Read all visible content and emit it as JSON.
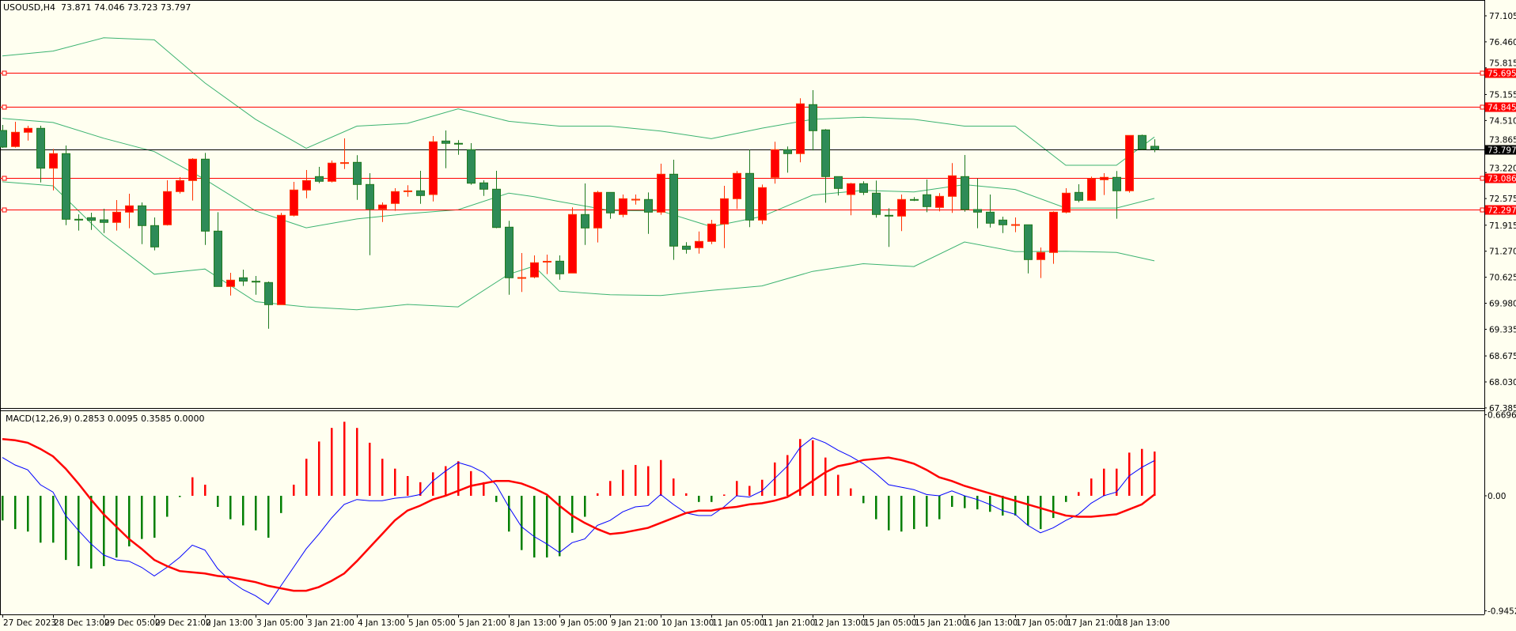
{
  "header": {
    "symbol_tf": "USOUSD,H4",
    "ohlc": "73.871 74.046 73.723 73.797"
  },
  "macd_header": {
    "name": "MACD(12,26,9)",
    "values": "0.2853 0.0095 0.3585 0.0000"
  },
  "colors": {
    "background": "#fffff0",
    "bull": "#ff0000",
    "bear": "#2e8b57",
    "band": "#3cb371",
    "level": "#ff0000",
    "macd_line": "#0000ff",
    "signal_line": "#ff0000",
    "hist_pos": "#ff0000",
    "hist_neg": "#007f00"
  },
  "price_axis": {
    "min": 67.385,
    "max": 77.105,
    "ticks": [
      "77.105",
      "76.460",
      "75.815",
      "75.155",
      "74.510",
      "73.865",
      "73.220",
      "72.575",
      "71.915",
      "71.270",
      "70.625",
      "69.980",
      "69.335",
      "68.675",
      "68.030",
      "67.385"
    ]
  },
  "levels": [
    {
      "price": 75.695,
      "label": "75.695"
    },
    {
      "price": 74.845,
      "label": "74.845"
    },
    {
      "price": 73.086,
      "label": "73.086"
    },
    {
      "price": 72.297,
      "label": "72.297"
    }
  ],
  "current_price": {
    "price": 73.797,
    "label": "73.797"
  },
  "macd_axis": {
    "ticks": [
      {
        "v": 0.6696,
        "label": "0.6696"
      },
      {
        "v": 0,
        "label": "0.00"
      },
      {
        "v": -0.9452,
        "label": "-0.9452"
      }
    ]
  },
  "time_axis": {
    "every_bars": 4,
    "labels": [
      "27 Dec 2023",
      "28 Dec 13:00",
      "29 Dec 05:00",
      "29 Dec 21:00",
      "2 Jan 13:00",
      "3 Jan 05:00",
      "3 Jan 21:00",
      "4 Jan 13:00",
      "5 Jan 05:00",
      "5 Jan 21:00",
      "8 Jan 13:00",
      "9 Jan 05:00",
      "9 Jan 21:00",
      "10 Jan 13:00",
      "11 Jan 05:00",
      "11 Jan 21:00",
      "12 Jan 13:00",
      "15 Jan 05:00",
      "15 Jan 21:00",
      "16 Jan 13:00",
      "17 Jan 05:00",
      "17 Jan 21:00",
      "18 Jan 13:00"
    ]
  },
  "chart_data": {
    "type": "candlestick",
    "timeframe": "H4",
    "ohlc": [
      [
        74.263,
        74.4,
        73.832,
        73.851
      ],
      [
        73.865,
        74.479,
        73.838,
        74.218
      ],
      [
        74.218,
        74.381,
        74.014,
        74.316
      ],
      [
        74.316,
        74.381,
        72.975,
        73.328
      ],
      [
        73.328,
        73.806,
        72.779,
        73.689
      ],
      [
        73.689,
        73.891,
        71.917,
        72.062
      ],
      [
        72.062,
        72.186,
        71.78,
        72.05
      ],
      [
        72.101,
        72.225,
        71.799,
        72.035
      ],
      [
        72.048,
        72.323,
        71.721,
        71.984
      ],
      [
        71.984,
        72.538,
        71.78,
        72.238
      ],
      [
        72.238,
        72.695,
        71.839,
        72.395
      ],
      [
        72.395,
        72.479,
        71.446,
        71.905
      ],
      [
        71.905,
        72.107,
        71.29,
        71.376
      ],
      [
        71.925,
        73.028,
        71.905,
        72.748
      ],
      [
        72.748,
        73.107,
        72.701,
        73.022
      ],
      [
        73.022,
        73.577,
        72.525,
        73.552
      ],
      [
        73.552,
        73.708,
        71.427,
        71.768
      ],
      [
        71.768,
        72.238,
        70.396,
        70.396
      ],
      [
        70.396,
        70.735,
        70.172,
        70.553
      ],
      [
        70.612,
        70.813,
        70.408,
        70.529
      ],
      [
        70.525,
        70.657,
        70.192,
        70.52
      ],
      [
        70.494,
        70.519,
        69.349,
        69.945
      ],
      [
        69.945,
        72.219,
        69.945,
        72.16
      ],
      [
        72.16,
        72.989,
        72.132,
        72.787
      ],
      [
        72.787,
        73.283,
        72.583,
        73.022
      ],
      [
        73.12,
        73.361,
        72.956,
        73.003
      ],
      [
        73.003,
        73.518,
        72.975,
        73.454
      ],
      [
        73.454,
        74.067,
        73.308,
        73.466
      ],
      [
        73.473,
        73.65,
        72.544,
        72.924
      ],
      [
        72.924,
        73.205,
        71.172,
        72.317
      ],
      [
        72.317,
        72.479,
        71.995,
        72.415
      ],
      [
        72.454,
        72.832,
        72.27,
        72.748
      ],
      [
        72.754,
        72.905,
        72.622,
        72.766
      ],
      [
        72.768,
        73.263,
        72.446,
        72.65
      ],
      [
        72.675,
        74.126,
        72.505,
        73.983
      ],
      [
        74.002,
        74.263,
        73.328,
        73.944
      ],
      [
        73.944,
        74.022,
        73.661,
        73.904
      ],
      [
        73.787,
        73.949,
        72.917,
        72.956
      ],
      [
        72.964,
        73.028,
        72.642,
        72.807
      ],
      [
        72.807,
        73.263,
        71.839,
        71.858
      ],
      [
        71.866,
        72.023,
        70.192,
        70.612
      ],
      [
        70.612,
        71.225,
        70.259,
        70.617
      ],
      [
        70.631,
        71.166,
        70.598,
        70.984
      ],
      [
        71.014,
        71.186,
        70.702,
        71.02
      ],
      [
        71.023,
        71.166,
        70.564,
        70.71
      ],
      [
        70.729,
        72.356,
        70.729,
        72.18
      ],
      [
        72.18,
        72.95,
        71.427,
        71.846
      ],
      [
        71.846,
        72.767,
        71.486,
        72.728
      ],
      [
        72.728,
        72.728,
        72.074,
        72.219
      ],
      [
        72.18,
        72.675,
        72.113,
        72.571
      ],
      [
        72.554,
        72.675,
        72.426,
        72.558
      ],
      [
        72.552,
        72.728,
        71.701,
        72.238
      ],
      [
        72.238,
        73.44,
        72.172,
        73.179
      ],
      [
        73.179,
        73.538,
        71.055,
        71.396
      ],
      [
        71.396,
        71.494,
        71.211,
        71.317
      ],
      [
        71.356,
        71.76,
        71.211,
        71.513
      ],
      [
        71.513,
        72.048,
        71.446,
        71.944
      ],
      [
        71.944,
        72.891,
        71.348,
        72.571
      ],
      [
        72.571,
        73.258,
        72.317,
        73.199
      ],
      [
        73.199,
        73.787,
        71.866,
        72.042
      ],
      [
        72.042,
        72.924,
        71.944,
        72.846
      ],
      [
        73.101,
        73.983,
        72.944,
        73.787
      ],
      [
        73.787,
        73.865,
        73.218,
        73.689
      ],
      [
        73.689,
        75.061,
        73.473,
        74.924
      ],
      [
        74.904,
        75.263,
        73.767,
        74.257
      ],
      [
        74.277,
        74.297,
        72.473,
        73.12
      ],
      [
        73.12,
        73.12,
        72.65,
        72.826
      ],
      [
        72.675,
        72.964,
        72.16,
        72.944
      ],
      [
        72.944,
        73.003,
        72.662,
        72.728
      ],
      [
        72.709,
        73.022,
        72.101,
        72.18
      ],
      [
        72.16,
        72.336,
        71.376,
        72.15
      ],
      [
        72.14,
        72.675,
        71.768,
        72.552
      ],
      [
        72.552,
        72.611,
        72.513,
        72.545
      ],
      [
        72.67,
        73.048,
        72.238,
        72.375
      ],
      [
        72.356,
        72.709,
        72.258,
        72.63
      ],
      [
        72.63,
        73.454,
        72.219,
        73.14
      ],
      [
        73.12,
        73.655,
        72.25,
        72.303
      ],
      [
        72.303,
        73.073,
        71.839,
        72.238
      ],
      [
        72.238,
        72.675,
        71.858,
        71.964
      ],
      [
        72.042,
        72.127,
        71.721,
        71.925
      ],
      [
        71.925,
        72.107,
        71.741,
        71.93
      ],
      [
        71.925,
        71.925,
        70.721,
        71.062
      ],
      [
        71.062,
        71.362,
        70.604,
        71.239
      ],
      [
        71.239,
        72.258,
        70.957,
        72.238
      ],
      [
        72.238,
        72.832,
        72.211,
        72.709
      ],
      [
        72.728,
        72.93,
        72.485,
        72.532
      ],
      [
        72.532,
        73.12,
        72.532,
        73.062
      ],
      [
        73.042,
        73.205,
        72.662,
        73.101
      ],
      [
        73.101,
        73.258,
        72.074,
        72.768
      ],
      [
        72.768,
        74.14,
        72.721,
        74.14
      ],
      [
        74.14,
        74.159,
        73.787,
        73.799
      ],
      [
        73.871,
        74.046,
        73.723,
        73.797
      ]
    ],
    "bollinger": {
      "at_bar": [
        0,
        4,
        8,
        12,
        16,
        20,
        24,
        28,
        32,
        36,
        40,
        42,
        44,
        48,
        52,
        56,
        60,
        64,
        68,
        72,
        76,
        80,
        84,
        88,
        91
      ],
      "upper": [
        76.11,
        76.23,
        76.56,
        76.51,
        75.44,
        74.54,
        73.82,
        74.37,
        74.44,
        74.8,
        74.49,
        74.43,
        74.37,
        74.37,
        74.25,
        74.06,
        74.32,
        74.54,
        74.59,
        74.54,
        74.37,
        74.37,
        73.4,
        73.4,
        74.1
      ],
      "middle": [
        74.56,
        74.46,
        74.07,
        73.74,
        73.05,
        72.27,
        71.85,
        72.07,
        72.2,
        72.3,
        72.71,
        72.62,
        72.5,
        72.28,
        72.27,
        71.88,
        72.13,
        72.66,
        72.78,
        72.74,
        72.92,
        72.8,
        72.34,
        72.34,
        72.58
      ],
      "lower": [
        72.99,
        72.89,
        71.66,
        70.7,
        70.83,
        70.02,
        69.89,
        69.82,
        69.95,
        69.89,
        70.7,
        70.9,
        70.28,
        70.19,
        70.17,
        70.3,
        70.41,
        70.77,
        70.96,
        70.89,
        71.5,
        71.26,
        71.27,
        71.24,
        71.03
      ]
    },
    "macd": {
      "ylim": [
        -0.9452,
        0.6696
      ],
      "histogram": [
        -0.2,
        -0.27,
        -0.29,
        -0.38,
        -0.38,
        -0.52,
        -0.57,
        -0.59,
        -0.57,
        -0.5,
        -0.41,
        -0.35,
        -0.34,
        -0.17,
        -0.01,
        0.15,
        0.09,
        -0.09,
        -0.19,
        -0.24,
        -0.28,
        -0.34,
        -0.14,
        0.09,
        0.3,
        0.44,
        0.55,
        0.6,
        0.55,
        0.43,
        0.3,
        0.22,
        0.16,
        0.11,
        0.19,
        0.24,
        0.28,
        0.2,
        0.11,
        -0.05,
        -0.29,
        -0.44,
        -0.5,
        -0.5,
        -0.49,
        -0.3,
        -0.17,
        0.02,
        0.12,
        0.21,
        0.25,
        0.24,
        0.29,
        0.14,
        0.02,
        -0.05,
        -0.05,
        0.01,
        0.12,
        0.08,
        0.13,
        0.27,
        0.33,
        0.46,
        0.45,
        0.31,
        0.17,
        0.06,
        -0.06,
        -0.19,
        -0.28,
        -0.29,
        -0.27,
        -0.25,
        -0.19,
        -0.09,
        -0.1,
        -0.11,
        -0.13,
        -0.16,
        -0.16,
        -0.24,
        -0.27,
        -0.18,
        -0.05,
        0.03,
        0.14,
        0.22,
        0.22,
        0.35,
        0.38,
        0.3585
      ],
      "line": [
        0.31,
        0.25,
        0.21,
        0.09,
        0.03,
        -0.16,
        -0.28,
        -0.39,
        -0.48,
        -0.52,
        -0.53,
        -0.58,
        -0.65,
        -0.58,
        -0.5,
        -0.4,
        -0.44,
        -0.59,
        -0.69,
        -0.76,
        -0.81,
        -0.88,
        -0.73,
        -0.58,
        -0.43,
        -0.31,
        -0.18,
        -0.07,
        -0.03,
        -0.04,
        -0.04,
        -0.02,
        -0.01,
        0.01,
        0.12,
        0.2,
        0.27,
        0.24,
        0.19,
        0.09,
        -0.09,
        -0.25,
        -0.33,
        -0.39,
        -0.46,
        -0.38,
        -0.35,
        -0.24,
        -0.2,
        -0.13,
        -0.09,
        -0.08,
        0.01,
        -0.07,
        -0.14,
        -0.16,
        -0.16,
        -0.09,
        0.0,
        -0.01,
        0.04,
        0.14,
        0.24,
        0.39,
        0.47,
        0.43,
        0.37,
        0.32,
        0.26,
        0.18,
        0.09,
        0.07,
        0.05,
        0.01,
        0.0,
        0.04,
        0.0,
        -0.03,
        -0.07,
        -0.12,
        -0.15,
        -0.24,
        -0.3,
        -0.26,
        -0.2,
        -0.15,
        -0.06,
        0.0,
        0.03,
        0.16,
        0.23,
        0.2853
      ],
      "signal": [
        0.46,
        0.45,
        0.43,
        0.38,
        0.32,
        0.22,
        0.1,
        -0.03,
        -0.15,
        -0.25,
        -0.35,
        -0.43,
        -0.52,
        -0.57,
        -0.61,
        -0.62,
        -0.63,
        -0.65,
        -0.66,
        -0.68,
        -0.7,
        -0.73,
        -0.75,
        -0.77,
        -0.77,
        -0.74,
        -0.69,
        -0.63,
        -0.53,
        -0.42,
        -0.31,
        -0.2,
        -0.12,
        -0.08,
        -0.03,
        0.0,
        0.04,
        0.08,
        0.1,
        0.12,
        0.12,
        0.1,
        0.06,
        0.01,
        -0.08,
        -0.16,
        -0.22,
        -0.27,
        -0.31,
        -0.3,
        -0.28,
        -0.26,
        -0.22,
        -0.18,
        -0.14,
        -0.12,
        -0.12,
        -0.1,
        -0.09,
        -0.07,
        -0.06,
        -0.04,
        -0.01,
        0.05,
        0.12,
        0.19,
        0.24,
        0.26,
        0.29,
        0.3,
        0.31,
        0.29,
        0.26,
        0.21,
        0.15,
        0.12,
        0.08,
        0.05,
        0.02,
        -0.01,
        -0.04,
        -0.07,
        -0.1,
        -0.13,
        -0.16,
        -0.17,
        -0.17,
        -0.16,
        -0.15,
        -0.11,
        -0.07,
        0.0095
      ]
    }
  }
}
